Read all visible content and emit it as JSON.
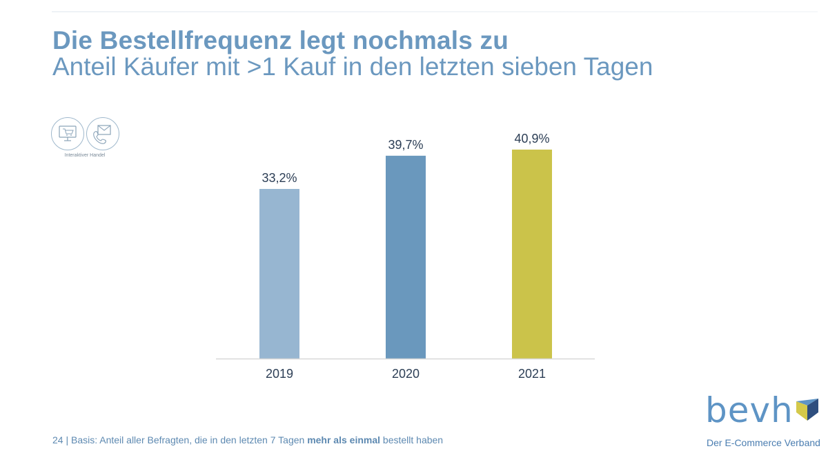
{
  "title": "Die Bestellfrequenz legt nochmals zu",
  "subtitle": "Anteil Käufer mit >1 Kauf in den letzten sieben Tagen",
  "channel": {
    "label": "Interaktiver Handel",
    "icons": [
      "computer-cart-icon",
      "phone-mail-icon"
    ]
  },
  "chart_data": {
    "type": "bar",
    "categories": [
      "2019",
      "2020",
      "2021"
    ],
    "values": [
      33.2,
      39.7,
      40.9
    ],
    "labels": [
      "33,2%",
      "39,7%",
      "40,9%"
    ],
    "colors": [
      "#97b6d1",
      "#6a98bd",
      "#cbc34a"
    ],
    "ylim": [
      0,
      45
    ],
    "xlabel": "",
    "ylabel": "",
    "grid": false
  },
  "footer": {
    "page": "24",
    "sep": " | ",
    "prefix": "Basis: Anteil aller Befragten, die in den letzten 7 Tagen ",
    "bold": "mehr als einmal",
    "suffix": " bestellt haben"
  },
  "logo": {
    "word": "bevh",
    "tagline": "Der E-Commerce Verband",
    "colors": [
      "#5e94c5",
      "#d4c94a",
      "#2e4e7e"
    ]
  }
}
